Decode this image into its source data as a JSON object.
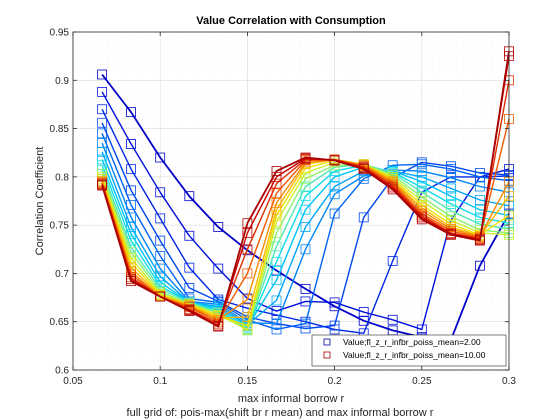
{
  "chart_data": {
    "type": "line",
    "title": "Value Correlation with Consumption",
    "xlabel": "max informal borrow r",
    "ylabel": "Correlation Coefficient",
    "caption": "full grid of: pois-max(shift br r mean) and max informal borrow r",
    "xlim": [
      0.05,
      0.3
    ],
    "ylim": [
      0.6,
      0.95
    ],
    "xticks": [
      0.05,
      0.1,
      0.15,
      0.2,
      0.25,
      0.3
    ],
    "xtick_labels": [
      "0.05",
      "0.1",
      "0.15",
      "0.2",
      "0.25",
      "0.3"
    ],
    "yticks": [
      0.6,
      0.65,
      0.7,
      0.75,
      0.8,
      0.85,
      0.9,
      0.95
    ],
    "ytick_labels": [
      "0.6",
      "0.65",
      "0.7",
      "0.75",
      "0.8",
      "0.85",
      "0.9",
      "0.95"
    ],
    "grid": true,
    "legend_position": "bottom-right",
    "x": [
      0.0667,
      0.0833,
      0.1,
      0.1167,
      0.1333,
      0.15,
      0.1667,
      0.1833,
      0.2,
      0.2167,
      0.2333,
      0.25,
      0.2667,
      0.2833,
      0.3
    ],
    "legend": [
      {
        "label": "Value;fl_z_r_infbr_poiss_mean=2.00",
        "color": "#0000aa"
      },
      {
        "label": "Value;fl_z_r_infbr_poiss_mean=10.00",
        "color": "#aa0000"
      }
    ],
    "series": [
      {
        "color": "#0000c8",
        "values": [
          0.906,
          0.867,
          0.82,
          0.78,
          0.748,
          0.724,
          0.703,
          0.684,
          0.666,
          0.651,
          0.641,
          0.634,
          0.631,
          0.708,
          0.762
        ]
      },
      {
        "color": "#0010dc",
        "values": [
          0.888,
          0.834,
          0.784,
          0.739,
          0.705,
          0.674,
          0.661,
          0.671,
          0.67,
          0.66,
          0.652,
          0.642,
          0.755,
          0.8,
          0.808
        ]
      },
      {
        "color": "#0028e8",
        "values": [
          0.87,
          0.808,
          0.757,
          0.706,
          0.673,
          0.664,
          0.657,
          0.65,
          0.642,
          0.638,
          0.713,
          0.784,
          0.8,
          0.8,
          0.801
        ]
      },
      {
        "color": "#0046f0",
        "values": [
          0.856,
          0.786,
          0.734,
          0.685,
          0.671,
          0.655,
          0.648,
          0.643,
          0.646,
          0.758,
          0.799,
          0.815,
          0.811,
          0.804,
          0.802
        ]
      },
      {
        "color": "#0064f5",
        "values": [
          0.845,
          0.771,
          0.718,
          0.674,
          0.67,
          0.652,
          0.642,
          0.648,
          0.762,
          0.798,
          0.812,
          0.813,
          0.808,
          0.8,
          0.796
        ]
      },
      {
        "color": "#0084f8",
        "values": [
          0.835,
          0.758,
          0.705,
          0.671,
          0.668,
          0.649,
          0.648,
          0.725,
          0.782,
          0.801,
          0.807,
          0.806,
          0.799,
          0.79,
          0.784
        ]
      },
      {
        "color": "#00a4fa",
        "values": [
          0.826,
          0.748,
          0.697,
          0.67,
          0.666,
          0.647,
          0.672,
          0.748,
          0.79,
          0.806,
          0.806,
          0.8,
          0.788,
          0.776,
          0.77
        ]
      },
      {
        "color": "#00c4f8",
        "values": [
          0.818,
          0.741,
          0.691,
          0.67,
          0.664,
          0.645,
          0.693,
          0.766,
          0.8,
          0.81,
          0.806,
          0.795,
          0.78,
          0.766,
          0.76
        ]
      },
      {
        "color": "#10dcec",
        "values": [
          0.812,
          0.734,
          0.687,
          0.67,
          0.662,
          0.643,
          0.712,
          0.78,
          0.806,
          0.812,
          0.805,
          0.789,
          0.772,
          0.758,
          0.752
        ]
      },
      {
        "color": "#50e8b4",
        "values": [
          0.807,
          0.727,
          0.684,
          0.67,
          0.66,
          0.642,
          0.728,
          0.79,
          0.81,
          0.813,
          0.804,
          0.784,
          0.765,
          0.751,
          0.746
        ]
      },
      {
        "color": "#8cf070",
        "values": [
          0.803,
          0.722,
          0.681,
          0.669,
          0.659,
          0.641,
          0.742,
          0.798,
          0.812,
          0.813,
          0.802,
          0.779,
          0.759,
          0.745,
          0.742
        ]
      },
      {
        "color": "#c8f030",
        "values": [
          0.8,
          0.716,
          0.679,
          0.668,
          0.657,
          0.642,
          0.753,
          0.804,
          0.815,
          0.813,
          0.8,
          0.775,
          0.755,
          0.742,
          0.74
        ]
      },
      {
        "color": "#f0e000",
        "values": [
          0.798,
          0.711,
          0.678,
          0.668,
          0.656,
          0.646,
          0.76,
          0.809,
          0.817,
          0.813,
          0.798,
          0.771,
          0.751,
          0.74,
          0.76
        ]
      },
      {
        "color": "#f8b800",
        "values": [
          0.796,
          0.706,
          0.677,
          0.667,
          0.654,
          0.655,
          0.766,
          0.813,
          0.818,
          0.813,
          0.796,
          0.768,
          0.748,
          0.739,
          0.78
        ]
      },
      {
        "color": "#f88a00",
        "values": [
          0.795,
          0.702,
          0.676,
          0.666,
          0.652,
          0.673,
          0.773,
          0.815,
          0.818,
          0.812,
          0.795,
          0.765,
          0.746,
          0.738,
          0.795
        ]
      },
      {
        "color": "#f05a00",
        "values": [
          0.794,
          0.699,
          0.676,
          0.665,
          0.65,
          0.7,
          0.783,
          0.817,
          0.818,
          0.811,
          0.793,
          0.762,
          0.744,
          0.737,
          0.86
        ]
      },
      {
        "color": "#e02c00",
        "values": [
          0.793,
          0.696,
          0.676,
          0.663,
          0.648,
          0.725,
          0.793,
          0.818,
          0.818,
          0.81,
          0.791,
          0.76,
          0.742,
          0.736,
          0.9
        ]
      },
      {
        "color": "#c80000",
        "values": [
          0.792,
          0.694,
          0.676,
          0.662,
          0.646,
          0.742,
          0.8,
          0.819,
          0.817,
          0.809,
          0.789,
          0.758,
          0.741,
          0.735,
          0.925
        ]
      },
      {
        "color": "#aa0000",
        "values": [
          0.791,
          0.692,
          0.676,
          0.661,
          0.645,
          0.752,
          0.806,
          0.82,
          0.817,
          0.808,
          0.787,
          0.756,
          0.74,
          0.734,
          0.93
        ]
      }
    ]
  }
}
